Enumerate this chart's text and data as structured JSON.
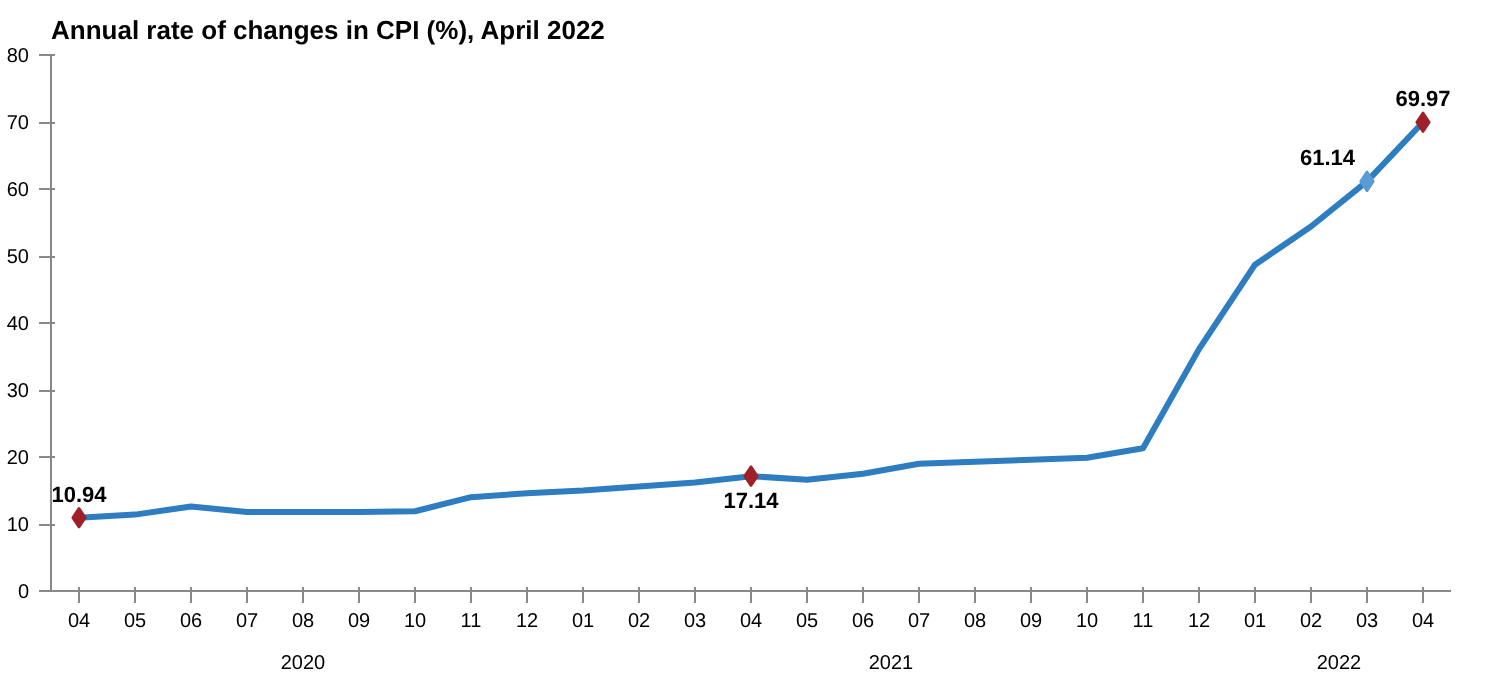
{
  "chart_data": {
    "type": "line",
    "title": "Annual rate of changes in CPI (%), April 2022",
    "categories": [
      "04",
      "05",
      "06",
      "07",
      "08",
      "09",
      "10",
      "11",
      "12",
      "01",
      "02",
      "03",
      "04",
      "05",
      "06",
      "07",
      "08",
      "09",
      "10",
      "11",
      "12",
      "01",
      "02",
      "03",
      "04"
    ],
    "annotations": [
      "2020",
      "2021",
      "2022"
    ],
    "series": [
      {
        "color": "#2e7dc0",
        "values": [
          10.94,
          11.4,
          12.6,
          11.8,
          11.8,
          11.8,
          11.9,
          14.0,
          14.6,
          15.0,
          15.6,
          16.2,
          17.14,
          16.6,
          17.5,
          19.0,
          19.3,
          19.6,
          19.9,
          21.3,
          36.1,
          48.7,
          54.4,
          61.14,
          69.97
        ],
        "colors": [
          "#a0202a",
          null,
          null,
          null,
          null,
          null,
          null,
          null,
          null,
          null,
          null,
          null,
          "#a0202a",
          null,
          null,
          null,
          null,
          null,
          null,
          null,
          null,
          null,
          null,
          "#5b9bd5",
          "#a0202a"
        ],
        "value_labels": [
          "10.94",
          null,
          null,
          null,
          null,
          null,
          null,
          null,
          null,
          null,
          null,
          null,
          "17.14",
          null,
          null,
          null,
          null,
          null,
          null,
          null,
          null,
          null,
          null,
          "61.14",
          "69.97"
        ]
      }
    ],
    "ylim": [
      0,
      80
    ],
    "yticks": [
      0,
      10,
      20,
      30,
      40,
      50,
      60,
      70,
      80
    ],
    "grid": false,
    "line_style": "solid"
  }
}
